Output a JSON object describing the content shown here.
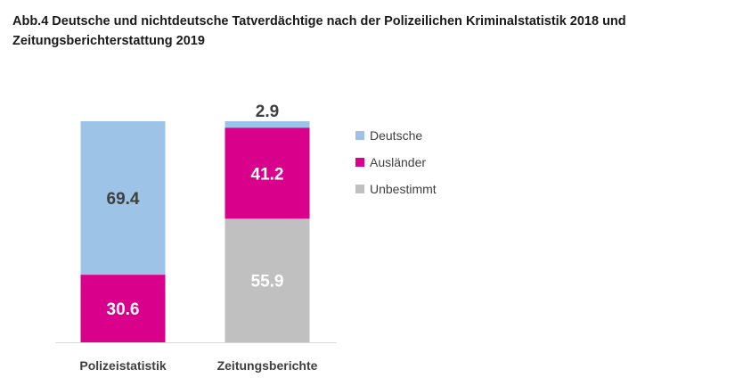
{
  "chart_data": {
    "type": "bar",
    "stacked": true,
    "title": "Abb.4 Deutsche und nichtdeutsche Tatverdächtige nach der Polizeilichen Kriminalstatistik 2018 und Zeitungsberichterstattung 2019",
    "categories": [
      "Polizeistatistik",
      "Zeitungsberichte"
    ],
    "series": [
      {
        "name": "Unbestimmt",
        "color": "#c0c0c0",
        "label_color": "#ffffff",
        "values": [
          0,
          55.9
        ]
      },
      {
        "name": "Ausländer",
        "color": "#d9008c",
        "label_color": "#ffffff",
        "values": [
          30.6,
          41.2
        ]
      },
      {
        "name": "Deutsche",
        "color": "#9dc3e6",
        "label_color": "#404040",
        "values": [
          69.4,
          2.9
        ]
      }
    ],
    "legend_order": [
      "Deutsche",
      "Ausländer",
      "Unbestimmt"
    ],
    "legend_position": "right",
    "ylim": [
      0,
      100
    ],
    "xlabel": "",
    "ylabel": ""
  }
}
